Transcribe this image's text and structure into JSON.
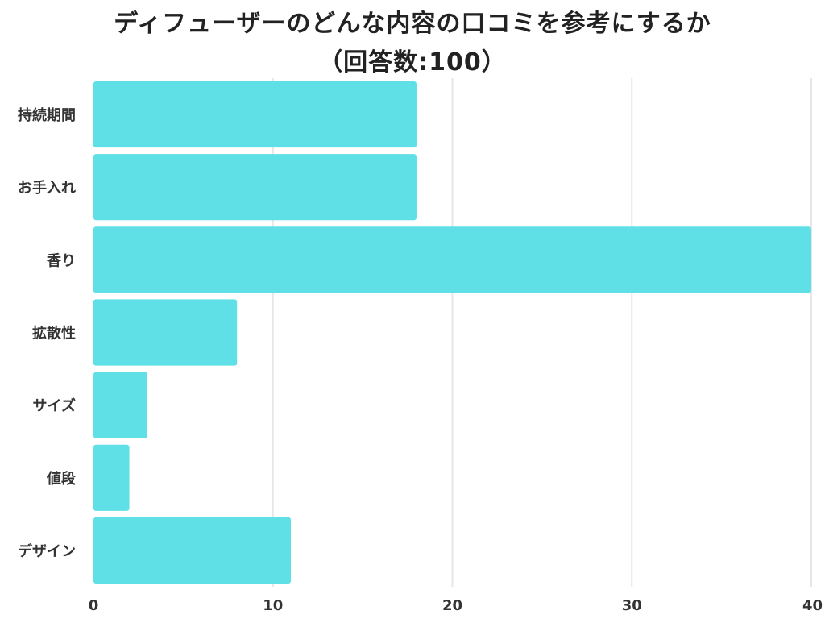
{
  "chart_data": {
    "type": "bar",
    "orientation": "horizontal",
    "title": "ディフューザーのどんな内容の口コミを参考にするか",
    "subtitle": "（回答数:100）",
    "categories": [
      "持続期間",
      "お手入れ",
      "香り",
      "拡散性",
      "サイズ",
      "値段",
      "デザイン"
    ],
    "values": [
      18,
      18,
      40,
      8,
      3,
      2,
      11
    ],
    "xlim": [
      0,
      40
    ],
    "xticks": [
      0,
      10,
      20,
      30,
      40
    ],
    "xlabel": "",
    "ylabel": "",
    "grid": true,
    "legend": "none",
    "bar_color": "#5ee0e6",
    "grid_color": "#e6e6e6"
  }
}
